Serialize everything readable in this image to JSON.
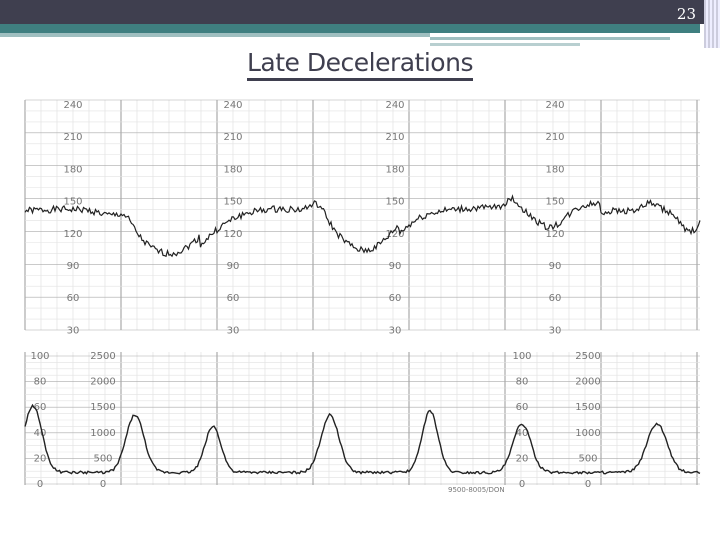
{
  "slide": {
    "number": "23",
    "title": "Late Decelerations"
  },
  "strip": {
    "heart_rate_scale": [
      "240",
      "210",
      "180",
      "150",
      "120",
      "90",
      "60",
      "30"
    ],
    "contraction_scale_mmhg": [
      "100",
      "80",
      "60",
      "40",
      "20",
      "0"
    ],
    "contraction_scale_secondary": [
      "2500",
      "2000",
      "1500",
      "1000",
      "500",
      "0"
    ],
    "footer_code": "9500-8005/DON",
    "colors": {
      "paper_grid": "#bbbbbb",
      "trace": "#222222",
      "header": "#3f3f4f",
      "accent": "#3f7f80"
    }
  }
}
